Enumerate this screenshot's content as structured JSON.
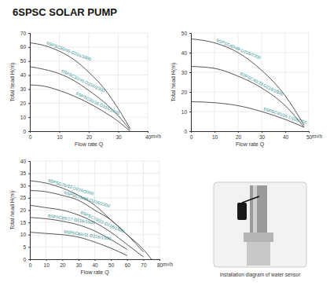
{
  "title": "6SPSC SOLAR PUMP",
  "image": {
    "caption": "Installation diagram of water sensor"
  },
  "chart_data": [
    {
      "type": "line",
      "x_label": "Flow rate Q",
      "y_label": "Total head H(m)",
      "annotations": [
        "m³/h"
      ],
      "x": [
        0,
        5,
        10,
        15,
        20,
        25,
        30,
        34
      ],
      "xlim": [
        0,
        40
      ],
      "xticks": [
        0,
        10,
        20,
        30,
        40
      ],
      "ylim": [
        0,
        70
      ],
      "yticks": [
        0,
        10,
        20,
        30,
        40,
        50,
        60,
        70
      ],
      "grid": true,
      "series": [
        {
          "name": "6SPSC30/60-D216/1800",
          "color": "#444444",
          "values": [
            63,
            61,
            57,
            51,
            42,
            31,
            16,
            2
          ]
        },
        {
          "name": "6SPSC30/45-D216/1300",
          "color": "#444444",
          "values": [
            46,
            44,
            41,
            36,
            29,
            21,
            11,
            1
          ]
        },
        {
          "name": "6SPSC30/31-D216/1000",
          "color": "#444444",
          "values": [
            33,
            32,
            29,
            25,
            20,
            14,
            7,
            0
          ]
        }
      ]
    },
    {
      "type": "line",
      "x_label": "Flow rate Q",
      "y_label": "Total head H(m)",
      "annotations": [
        "m³/h"
      ],
      "x": [
        0,
        10,
        20,
        30,
        40,
        48
      ],
      "xlim": [
        0,
        50
      ],
      "xticks": [
        0,
        10,
        20,
        30,
        40,
        50
      ],
      "ylim": [
        0,
        50
      ],
      "yticks": [
        0,
        10,
        20,
        30,
        40,
        50
      ],
      "grid": true,
      "series": [
        {
          "name": "6SPSC40/49-D216/2200",
          "color": "#444444",
          "values": [
            47,
            45,
            40,
            31,
            18,
            3
          ]
        },
        {
          "name": "6SPSC40/33-D216/1500",
          "color": "#444444",
          "values": [
            33,
            32,
            28,
            22,
            13,
            2
          ]
        },
        {
          "name": "6SPSC40/16-D216/750",
          "color": "#444444",
          "values": [
            15,
            14.5,
            13,
            10,
            6,
            2
          ]
        }
      ]
    },
    {
      "type": "line",
      "x_label": "Flow rate Q",
      "y_label": "Total head H(m)",
      "annotations": [
        "m³/h"
      ],
      "x": [
        0,
        10,
        20,
        30,
        40,
        50,
        60,
        70,
        75
      ],
      "xlim": [
        0,
        80
      ],
      "xticks": [
        0,
        10,
        20,
        30,
        40,
        50,
        60,
        70,
        80
      ],
      "ylim": [
        0,
        40
      ],
      "yticks": [
        0,
        5,
        10,
        15,
        20,
        25,
        30,
        35,
        40
      ],
      "grid": true,
      "series": [
        {
          "name": "6SPSC75/32-D216/3000",
          "color": "#444444",
          "values": [
            32,
            31,
            29,
            26,
            22,
            16,
            10,
            3,
            null
          ]
        },
        {
          "name": "6SPSC75/28-D216/2200",
          "color": "#444444",
          "values": [
            28,
            27.5,
            26,
            24,
            20,
            16,
            10,
            4,
            0
          ]
        },
        {
          "name": "6SPSC70/22-D216/1800",
          "color": "#444444",
          "values": [
            22,
            21,
            20,
            18,
            15,
            11,
            6,
            1,
            null
          ]
        },
        {
          "name": "6SPSC65/17-D216/1500",
          "color": "#444444",
          "values": [
            17,
            16.5,
            15.5,
            14,
            11.5,
            8,
            4,
            null,
            null
          ]
        },
        {
          "name": "6SPSC60/11-D216/1000",
          "color": "#444444",
          "values": [
            11,
            10.5,
            10,
            9,
            7,
            4.5,
            1.5,
            null,
            null
          ]
        }
      ]
    }
  ]
}
